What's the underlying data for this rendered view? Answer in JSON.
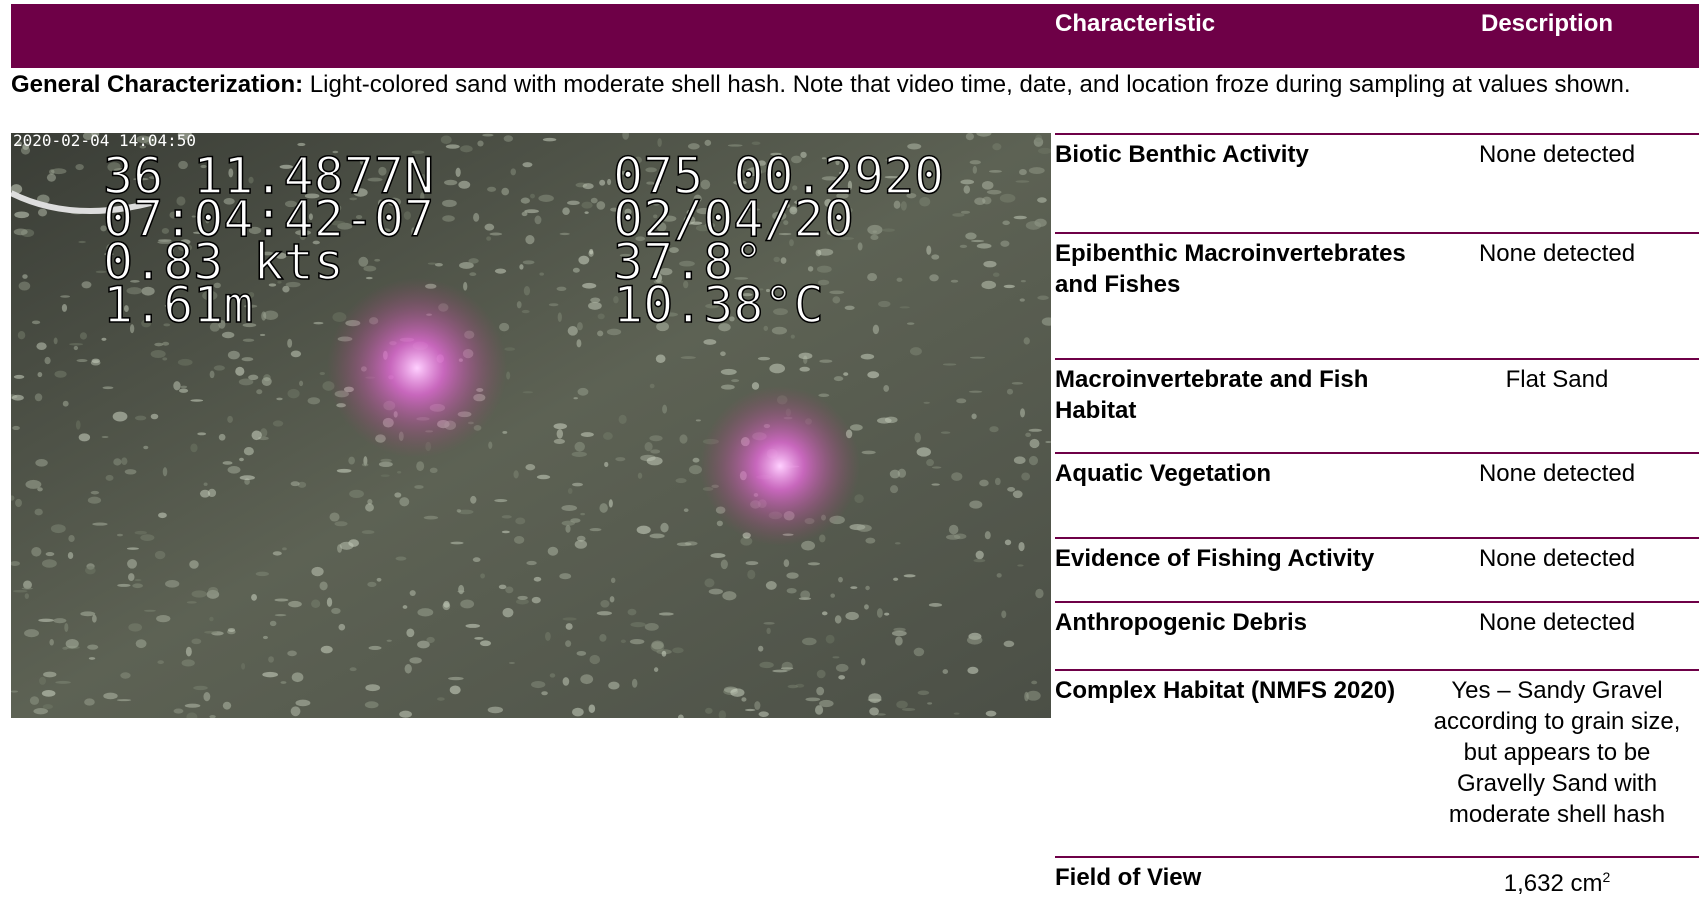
{
  "header": {
    "characteristic_heading": "Characteristic",
    "description_heading": "Description"
  },
  "general": {
    "label": "General Characterization:",
    "text": "Light-colored sand with moderate shell hash. Note that video time, date, and location froze during sampling at values shown."
  },
  "photo": {
    "timestamp": "2020-02-04 14:04:50",
    "overlay_left": [
      "36 11.4877N",
      "07:04:42-07",
      "0.83 kts",
      "1.61m"
    ],
    "overlay_right": [
      "075 00.2920",
      "02/04/20",
      "37.8°",
      "10.38°C"
    ]
  },
  "table": {
    "rows": [
      {
        "characteristic": "Biotic Benthic Activity",
        "description": "None detected"
      },
      {
        "characteristic": "Epibenthic Macroinvertebrates and Fishes",
        "description": "None detected"
      },
      {
        "characteristic": "Macroinvertebrate and Fish Habitat",
        "description": "Flat Sand"
      },
      {
        "characteristic": "Aquatic Vegetation",
        "description": "None detected"
      },
      {
        "characteristic": "Evidence of Fishing Activity",
        "description": "None detected"
      },
      {
        "characteristic": "Anthropogenic Debris",
        "description": "None detected"
      },
      {
        "characteristic": "Complex Habitat (NMFS 2020)",
        "description": "Yes – Sandy Gravel according to grain size, but appears to be Gravelly Sand with moderate shell hash"
      },
      {
        "characteristic": "Field of View",
        "description": "1,632 cm",
        "superscript": "2"
      }
    ]
  }
}
